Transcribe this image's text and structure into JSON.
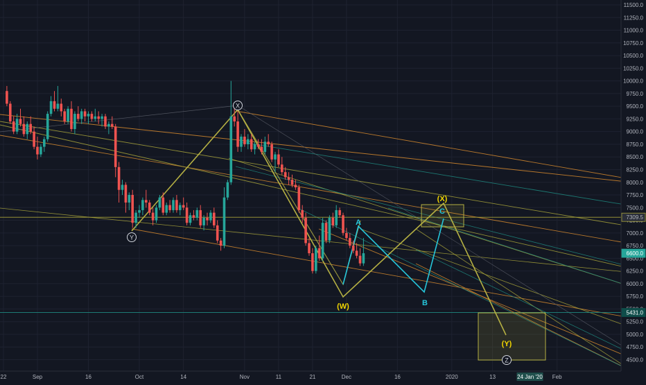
{
  "colors": {
    "background": "#131722",
    "grid": "#1e2230",
    "up": "#26a69a",
    "down": "#ef5350",
    "axis_text": "#b2b5be",
    "orange": "#d68a2e",
    "yellow_olive": "#a8a33a",
    "teal_line": "#1f8a80",
    "wave_yellow": "#b5b043",
    "wave_teal": "#26c6da",
    "label_yellow": "#f0d500",
    "label_teal": "#26c6da",
    "label_white": "#d1d4dc"
  },
  "chart_data": {
    "type": "candlestick",
    "y_axis": {
      "ylim": [
        4400,
        11600
      ],
      "ticks": [
        "4500.0",
        "4750.0",
        "5000.0",
        "5250.0",
        "5500.0",
        "5750.0",
        "6000.0",
        "6250.0",
        "6500.0",
        "6750.0",
        "7000.0",
        "7250.0",
        "7500.0",
        "7750.0",
        "8000.0",
        "8250.0",
        "8500.0",
        "8750.0",
        "9000.0",
        "9250.0",
        "9500.0",
        "9750.0",
        "10000.0",
        "10250.0",
        "10500.0",
        "10750.0",
        "11000.0",
        "11250.0",
        "11500.0"
      ]
    },
    "x_axis": {
      "ticks": [
        {
          "label": "22",
          "day": 0
        },
        {
          "label": "Sep",
          "day": 10
        },
        {
          "label": "16",
          "day": 25
        },
        {
          "label": "Oct",
          "day": 40
        },
        {
          "label": "14",
          "day": 53
        },
        {
          "label": "Nov",
          "day": 71
        },
        {
          "label": "11",
          "day": 81
        },
        {
          "label": "21",
          "day": 91
        },
        {
          "label": "Dec",
          "day": 101
        },
        {
          "label": "16",
          "day": 116
        },
        {
          "label": "2020",
          "day": 132
        },
        {
          "label": "13",
          "day": 144
        },
        {
          "label": "Feb",
          "day": 163
        }
      ],
      "cursor_label": {
        "label": "24 Jan '20",
        "day": 155
      }
    },
    "price_labels": [
      {
        "value": 7309.5,
        "label": "7309.5",
        "style": "yellow"
      },
      {
        "value": 6600.0,
        "label": "6600.0",
        "style": "teal"
      },
      {
        "value": 5431.0,
        "label": "5431.0",
        "style": "cyan"
      }
    ],
    "candles_ohlc": [
      [
        9800,
        9900,
        9500,
        9550
      ],
      [
        9550,
        9600,
        9150,
        9200
      ],
      [
        9200,
        9300,
        8950,
        9000
      ],
      [
        9000,
        9350,
        8950,
        9250
      ],
      [
        9250,
        9450,
        9100,
        9150
      ],
      [
        9150,
        9300,
        8900,
        8950
      ],
      [
        8950,
        9200,
        8850,
        9150
      ],
      [
        9150,
        9300,
        8950,
        9000
      ],
      [
        9000,
        9100,
        8650,
        8700
      ],
      [
        8700,
        8900,
        8450,
        8550
      ],
      [
        8550,
        8750,
        8500,
        8700
      ],
      [
        8700,
        8900,
        8600,
        8850
      ],
      [
        8850,
        9400,
        8800,
        9350
      ],
      [
        9350,
        9700,
        9300,
        9600
      ],
      [
        9600,
        9800,
        9400,
        9450
      ],
      [
        9450,
        9900,
        9400,
        9550
      ],
      [
        9550,
        9650,
        9300,
        9400
      ],
      [
        9400,
        9450,
        9150,
        9200
      ],
      [
        9200,
        9500,
        9150,
        9450
      ],
      [
        9450,
        9600,
        9000,
        9050
      ],
      [
        9050,
        9400,
        8950,
        9350
      ],
      [
        9350,
        9500,
        9200,
        9250
      ],
      [
        9250,
        9450,
        9150,
        9400
      ],
      [
        9400,
        9450,
        9200,
        9300
      ],
      [
        9300,
        9400,
        9150,
        9350
      ],
      [
        9350,
        9400,
        9200,
        9250
      ],
      [
        9250,
        9450,
        9200,
        9300
      ],
      [
        9300,
        9400,
        9150,
        9250
      ],
      [
        9250,
        9350,
        9100,
        9300
      ],
      [
        9300,
        9350,
        9050,
        9100
      ],
      [
        9100,
        9200,
        8950,
        9150
      ],
      [
        9150,
        9300,
        9050,
        9100
      ],
      [
        9100,
        9150,
        8100,
        8300
      ],
      [
        8300,
        8400,
        7600,
        7850
      ],
      [
        7850,
        8050,
        7750,
        7950
      ],
      [
        7950,
        8000,
        7400,
        7600
      ],
      [
        7600,
        7800,
        7450,
        7750
      ],
      [
        7750,
        7850,
        7100,
        7200
      ],
      [
        7200,
        7450,
        7100,
        7400
      ],
      [
        7400,
        7550,
        7300,
        7450
      ],
      [
        7450,
        7700,
        7350,
        7650
      ],
      [
        7650,
        7850,
        7500,
        7600
      ],
      [
        7600,
        7650,
        7350,
        7400
      ],
      [
        7400,
        7500,
        7150,
        7250
      ],
      [
        7250,
        7550,
        7200,
        7500
      ],
      [
        7500,
        7750,
        7450,
        7700
      ],
      [
        7700,
        7800,
        7350,
        7400
      ],
      [
        7400,
        7600,
        7350,
        7550
      ],
      [
        7550,
        7650,
        7400,
        7450
      ],
      [
        7450,
        7700,
        7400,
        7650
      ],
      [
        7650,
        7750,
        7400,
        7450
      ],
      [
        7450,
        7600,
        7350,
        7550
      ],
      [
        7550,
        7700,
        7450,
        7500
      ],
      [
        7500,
        7600,
        7150,
        7200
      ],
      [
        7200,
        7400,
        7150,
        7350
      ],
      [
        7350,
        7450,
        7250,
        7300
      ],
      [
        7300,
        7500,
        7250,
        7450
      ],
      [
        7450,
        7550,
        7100,
        7150
      ],
      [
        7150,
        7350,
        7050,
        7300
      ],
      [
        7300,
        7400,
        7150,
        7250
      ],
      [
        7250,
        7450,
        7200,
        7400
      ],
      [
        7400,
        7500,
        7100,
        7150
      ],
      [
        7150,
        7250,
        6800,
        6850
      ],
      [
        6850,
        6900,
        6650,
        6750
      ],
      [
        6750,
        7900,
        6700,
        7700
      ],
      [
        7700,
        8050,
        7650,
        8000
      ],
      [
        8000,
        10000,
        7950,
        9300
      ],
      [
        9300,
        9450,
        9100,
        9200
      ],
      [
        9200,
        9400,
        8600,
        8700
      ],
      [
        8700,
        8950,
        8600,
        8900
      ],
      [
        8900,
        9050,
        8700,
        8750
      ],
      [
        8750,
        8950,
        8650,
        8850
      ],
      [
        8850,
        8950,
        8600,
        8650
      ],
      [
        8650,
        8800,
        8550,
        8750
      ],
      [
        8750,
        8850,
        8650,
        8700
      ],
      [
        8700,
        8850,
        8550,
        8600
      ],
      [
        8600,
        8900,
        8550,
        8800
      ],
      [
        8800,
        8950,
        8700,
        8750
      ],
      [
        8750,
        8800,
        8400,
        8450
      ],
      [
        8450,
        8600,
        8200,
        8550
      ],
      [
        8550,
        8650,
        8300,
        8350
      ],
      [
        8350,
        8500,
        8150,
        8200
      ],
      [
        8200,
        8300,
        8050,
        8100
      ],
      [
        8100,
        8200,
        7950,
        8050
      ],
      [
        8050,
        8150,
        7900,
        7950
      ],
      [
        7950,
        8050,
        7850,
        7900
      ],
      [
        7900,
        7950,
        7400,
        7450
      ],
      [
        7450,
        7550,
        7200,
        7300
      ],
      [
        7300,
        7400,
        6750,
        6800
      ],
      [
        6800,
        6900,
        6550,
        6600
      ],
      [
        6600,
        6700,
        6200,
        6250
      ],
      [
        6250,
        6750,
        6200,
        6700
      ],
      [
        6700,
        6950,
        6450,
        6500
      ],
      [
        6500,
        7300,
        6450,
        7200
      ],
      [
        7200,
        7250,
        6800,
        6850
      ],
      [
        6850,
        7350,
        6800,
        7300
      ],
      [
        7300,
        7400,
        7100,
        7150
      ],
      [
        7150,
        7550,
        7100,
        7450
      ],
      [
        7450,
        7500,
        7300,
        7350
      ],
      [
        7350,
        7400,
        6950,
        7000
      ],
      [
        7000,
        7100,
        6850,
        6900
      ],
      [
        6900,
        7000,
        6700,
        6750
      ],
      [
        6750,
        6850,
        6600,
        6650
      ],
      [
        6650,
        6800,
        6500,
        6550
      ],
      [
        6550,
        6700,
        6350,
        6400
      ],
      [
        6400,
        6900,
        6350,
        6600
      ]
    ]
  },
  "annotations": {
    "labels": [
      {
        "text": "X",
        "style": "circle"
      },
      {
        "text": "Y",
        "style": "circle"
      },
      {
        "text": "Z",
        "style": "circle"
      },
      {
        "text": "(W)",
        "style": "yellow"
      },
      {
        "text": "(X)",
        "style": "yellow"
      },
      {
        "text": "(Y)",
        "style": "yellow"
      },
      {
        "text": "A",
        "style": "teal"
      },
      {
        "text": "B",
        "style": "teal"
      },
      {
        "text": "C",
        "style": "teal"
      }
    ]
  }
}
